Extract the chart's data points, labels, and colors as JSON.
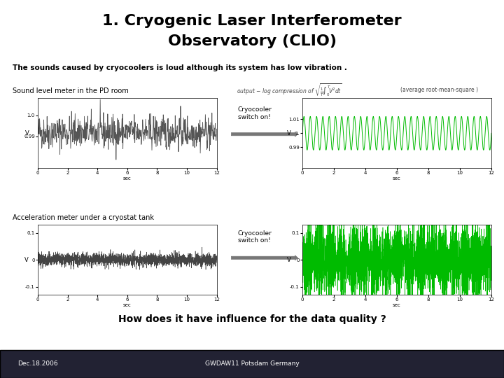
{
  "title_line1": "1. Cryogenic Laser Interferometer",
  "title_line2": "Observatory (CLIO)",
  "subtitle": "The sounds caused by cryocoolers is loud although its system has low vibration .",
  "label_sound": "Sound level meter in the PD room",
  "label_accel": "Acceleration meter under a cryostat tank",
  "formula_rms": "(average root-mean-square )",
  "cryo_label": "Cryocooler\nswitch on!",
  "bottom_question": "How does it have influence for the data quality ?",
  "footer_left": "Dec.18.2006",
  "footer_center": "GWDAW11 Potsdam Germany",
  "bg_color": "#ffffff",
  "footer_bg": "#222233",
  "plot1_color": "#555555",
  "plot2_color": "#00bb00",
  "plot3_color": "#444444",
  "plot4_color": "#00bb00",
  "sound_amplitude_after": 0.012,
  "sound_freq_after": 2.5,
  "accel_mod_freq": 0.7
}
